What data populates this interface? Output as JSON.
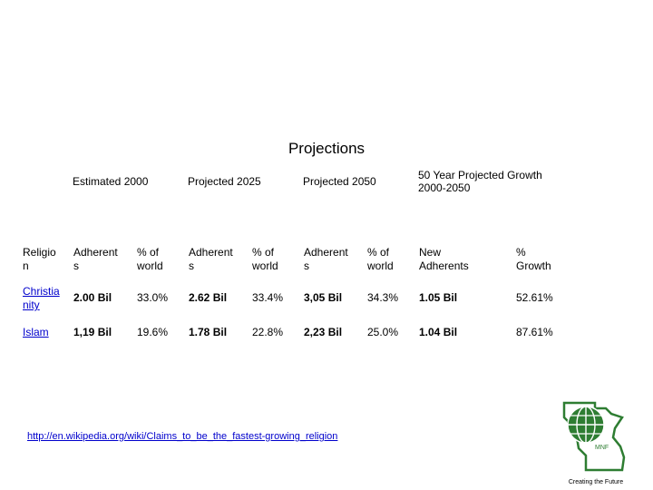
{
  "title": "Projections",
  "groups": {
    "estimated_2000": "Estimated 2000",
    "projected_2025": "Projected 2025",
    "projected_2050": "Projected 2050",
    "growth_line1": "50 Year Projected Growth",
    "growth_line2": "2000-2050"
  },
  "columns": {
    "religion": [
      "Religio",
      "n"
    ],
    "adherents_2000": [
      "Adherent",
      "s"
    ],
    "pct_2000": [
      "% of",
      "world"
    ],
    "adherents_2025": [
      "Adherent",
      "s"
    ],
    "pct_2025": [
      "% of",
      "world"
    ],
    "adherents_2050": [
      "Adherent",
      "s"
    ],
    "pct_2050": [
      "% of",
      "world"
    ],
    "new_adherents": [
      "New",
      "Adherents"
    ],
    "growth": [
      "%",
      "Growth"
    ]
  },
  "rows": [
    {
      "religion": [
        "Christia",
        "nity"
      ],
      "adherents_2000": "2.00 Bil",
      "pct_2000": "33.0%",
      "adherents_2025": "2.62 Bil",
      "pct_2025": "33.4%",
      "adherents_2050": "3,05 Bil",
      "pct_2050": "34.3%",
      "new_adherents": "1.05 Bil",
      "growth": "52.61%"
    },
    {
      "religion": [
        "Islam"
      ],
      "adherents_2000": "1,19 Bil",
      "pct_2000": "19.6%",
      "adherents_2025": "1.78 Bil",
      "pct_2025": "22.8%",
      "adherents_2050": "2,23 Bil",
      "pct_2050": "25.0%",
      "new_adherents": "1.04 Bil",
      "growth": "87.61%"
    }
  ],
  "footer_link": "http://en.wikipedia.org/wiki/Claims_to_be_the_fastest-growing_religion",
  "logo": {
    "badge": "MNF",
    "tagline": "Creating the Future"
  },
  "colors": {
    "link": "#0000cc",
    "logo_green": "#2e7d32"
  }
}
